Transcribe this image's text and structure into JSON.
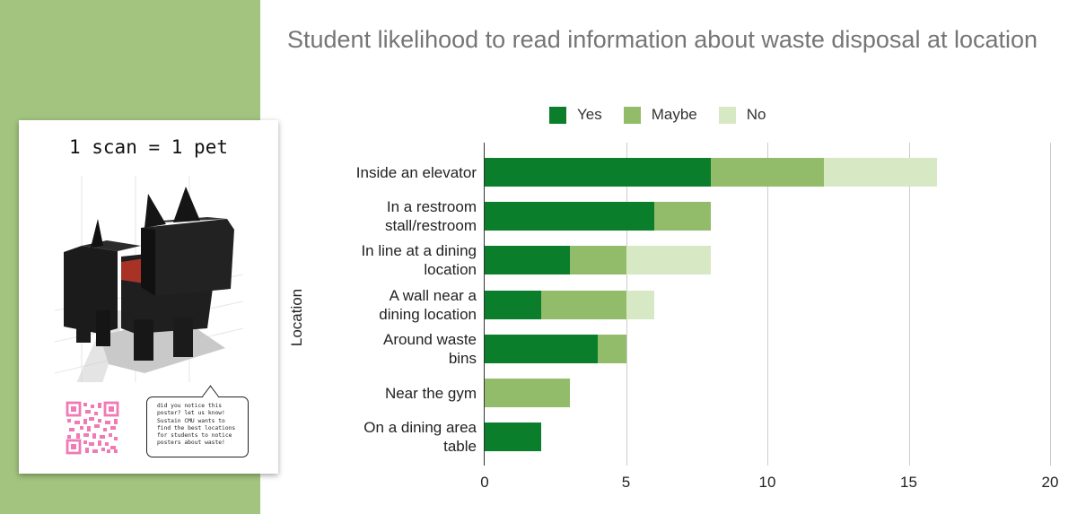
{
  "colors": {
    "band": "#a2c47e",
    "yes": "#0b7e2b",
    "maybe": "#92bc6a",
    "no": "#d6e9c4",
    "qr": "#f07ab5"
  },
  "poster": {
    "heading": "1 scan = 1 pet",
    "bubble_text": "did you notice this\nposter? let us know!\nSustain CMU wants to\nfind the best locations\nfor students to notice\nposters about waste!"
  },
  "chart_data": {
    "type": "bar",
    "orientation": "horizontal",
    "stacked": true,
    "title": "Student likelihood to read information about waste disposal at location",
    "ylabel": "Location",
    "xlabel": "",
    "categories": [
      [
        "Inside an elevator"
      ],
      [
        "In a restroom",
        "stall/restroom"
      ],
      [
        "In line at a dining",
        "location"
      ],
      [
        "A wall near a",
        "dining location"
      ],
      [
        "Around waste",
        "bins"
      ],
      [
        "Near the gym"
      ],
      [
        "On a dining area",
        "table"
      ]
    ],
    "series": [
      {
        "name": "Yes",
        "values": [
          8,
          6,
          3,
          2,
          4,
          0,
          2
        ]
      },
      {
        "name": "Maybe",
        "values": [
          4,
          2,
          2,
          3,
          1,
          3,
          0
        ]
      },
      {
        "name": "No",
        "values": [
          4,
          0,
          3,
          1,
          0,
          0,
          0
        ]
      }
    ],
    "xlim": [
      0,
      20
    ],
    "xticks": [
      "0",
      "5",
      "10",
      "15",
      "20"
    ],
    "grid": true,
    "legend": "top"
  }
}
